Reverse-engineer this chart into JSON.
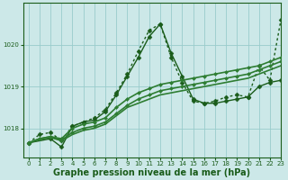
{
  "background_color": "#cce8e8",
  "grid_color": "#99cccc",
  "line_color1": "#1a5c1a",
  "line_color2": "#2e7d32",
  "xlabel": "Graphe pression niveau de la mer (hPa)",
  "xlabel_fontsize": 7,
  "xlim": [
    -0.5,
    23
  ],
  "ylim": [
    1017.3,
    1021.0
  ],
  "yticks": [
    1018,
    1019,
    1020
  ],
  "xticks": [
    0,
    1,
    2,
    3,
    4,
    5,
    6,
    7,
    8,
    9,
    10,
    11,
    12,
    13,
    14,
    15,
    16,
    17,
    18,
    19,
    20,
    21,
    22,
    23
  ],
  "series": [
    {
      "name": "dotted_dark",
      "x": [
        0,
        1,
        2,
        3,
        4,
        5,
        6,
        7,
        8,
        9,
        10,
        11,
        12,
        13,
        14,
        15,
        16,
        17,
        18,
        19,
        20,
        21,
        22,
        23
      ],
      "y": [
        1017.65,
        1017.85,
        1017.9,
        1017.7,
        1018.05,
        1018.15,
        1018.25,
        1018.45,
        1018.85,
        1019.3,
        1019.85,
        1020.35,
        1020.5,
        1019.7,
        1019.1,
        1018.65,
        1018.6,
        1018.65,
        1018.75,
        1018.8,
        1018.75,
        1019.5,
        1019.15,
        1020.6
      ],
      "linestyle": "dotted",
      "linewidth": 1.0,
      "color": "#1a5c1a",
      "marker": "D",
      "markersize": 2.5
    },
    {
      "name": "solid_dark_peak",
      "x": [
        0,
        2,
        3,
        4,
        5,
        6,
        7,
        8,
        9,
        10,
        11,
        12,
        13,
        14,
        15,
        16,
        17,
        18,
        19,
        20,
        21,
        22,
        23
      ],
      "y": [
        1017.65,
        1017.75,
        1017.55,
        1018.05,
        1018.15,
        1018.2,
        1018.4,
        1018.8,
        1019.25,
        1019.7,
        1020.2,
        1020.5,
        1019.8,
        1019.25,
        1018.7,
        1018.6,
        1018.6,
        1018.65,
        1018.7,
        1018.75,
        1019.0,
        1019.1,
        1019.15
      ],
      "linestyle": "solid",
      "linewidth": 1.0,
      "color": "#1a5c1a",
      "marker": "D",
      "markersize": 2.5
    },
    {
      "name": "solid_medium1",
      "x": [
        0,
        1,
        2,
        3,
        4,
        5,
        6,
        7,
        8,
        9,
        10,
        11,
        12,
        13,
        14,
        15,
        16,
        17,
        18,
        19,
        20,
        21,
        22,
        23
      ],
      "y": [
        1017.65,
        1017.75,
        1017.8,
        1017.75,
        1018.0,
        1018.1,
        1018.15,
        1018.25,
        1018.5,
        1018.7,
        1018.85,
        1018.95,
        1019.05,
        1019.1,
        1019.15,
        1019.2,
        1019.25,
        1019.3,
        1019.35,
        1019.4,
        1019.45,
        1019.5,
        1019.6,
        1019.7
      ],
      "linestyle": "solid",
      "linewidth": 1.2,
      "color": "#2e7d32",
      "marker": "D",
      "markersize": 2.0
    },
    {
      "name": "solid_medium2",
      "x": [
        0,
        1,
        2,
        3,
        4,
        5,
        6,
        7,
        8,
        9,
        10,
        11,
        12,
        13,
        14,
        15,
        16,
        17,
        18,
        19,
        20,
        21,
        22,
        23
      ],
      "y": [
        1017.65,
        1017.75,
        1017.8,
        1017.72,
        1017.9,
        1018.0,
        1018.05,
        1018.15,
        1018.35,
        1018.55,
        1018.7,
        1018.8,
        1018.9,
        1018.95,
        1019.0,
        1019.05,
        1019.1,
        1019.15,
        1019.2,
        1019.25,
        1019.3,
        1019.4,
        1019.5,
        1019.6
      ],
      "linestyle": "solid",
      "linewidth": 1.2,
      "color": "#2e7d32",
      "marker": "D",
      "markersize": 2.0
    },
    {
      "name": "solid_medium3",
      "x": [
        0,
        1,
        2,
        3,
        4,
        5,
        6,
        7,
        8,
        9,
        10,
        11,
        12,
        13,
        14,
        15,
        16,
        17,
        18,
        19,
        20,
        21,
        22,
        23
      ],
      "y": [
        1017.65,
        1017.73,
        1017.78,
        1017.7,
        1017.85,
        1017.95,
        1018.0,
        1018.1,
        1018.3,
        1018.5,
        1018.6,
        1018.7,
        1018.8,
        1018.85,
        1018.9,
        1018.95,
        1019.0,
        1019.05,
        1019.1,
        1019.15,
        1019.2,
        1019.3,
        1019.4,
        1019.5
      ],
      "linestyle": "solid",
      "linewidth": 1.2,
      "color": "#2e7d32",
      "marker": null,
      "markersize": 0
    }
  ]
}
